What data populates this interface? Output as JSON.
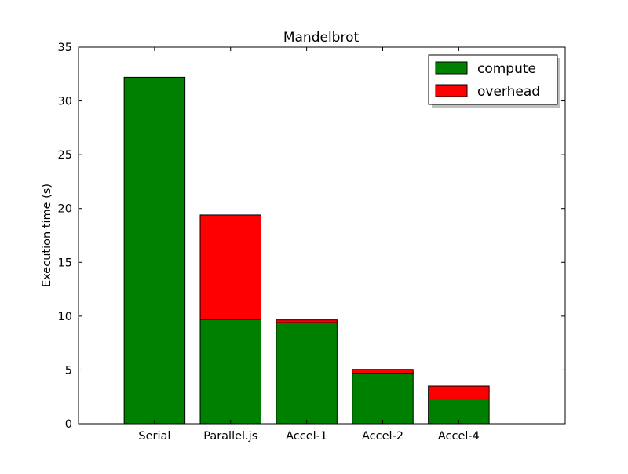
{
  "chart_data": {
    "type": "bar",
    "stacked": true,
    "title": "Mandelbrot",
    "xlabel": "",
    "ylabel": "Execution time (s)",
    "ylim": [
      0,
      35
    ],
    "yticks": [
      0,
      5,
      10,
      15,
      20,
      25,
      30,
      35
    ],
    "categories": [
      "Serial",
      "Parallel.js",
      "Accel-1",
      "Accel-2",
      "Accel-4"
    ],
    "series": [
      {
        "name": "compute",
        "color": "#008000",
        "values": [
          32.2,
          9.7,
          9.4,
          4.7,
          2.3
        ]
      },
      {
        "name": "overhead",
        "color": "#ff0000",
        "values": [
          0.0,
          9.7,
          0.25,
          0.35,
          1.2
        ]
      }
    ],
    "grid": false,
    "legend_position": "top-right",
    "legend_shadow": true
  }
}
